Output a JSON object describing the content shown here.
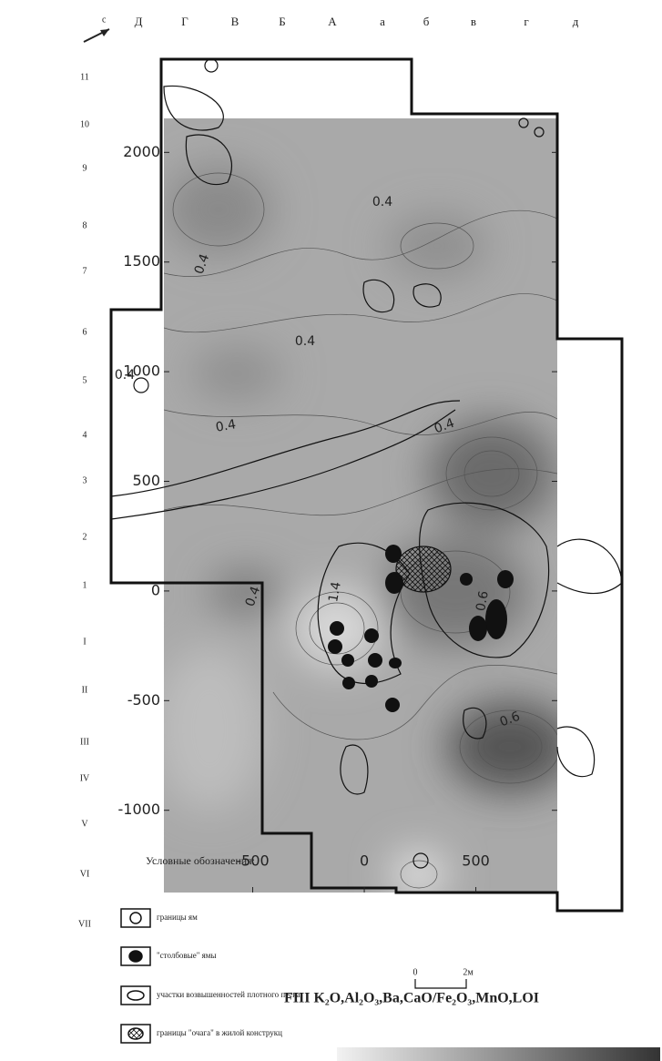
{
  "chart_data": {
    "type": "contour",
    "title": "FIII K₂O,Al₂O₃,Ba,CaO/Fe₂O₃,MnO,LOI",
    "north_label": "с",
    "columns": [
      "Д",
      "Г",
      "В",
      "Б",
      "А",
      "а",
      "б",
      "в",
      "г",
      "д"
    ],
    "rows": [
      "11",
      "10",
      "9",
      "8",
      "7",
      "6",
      "5",
      "4",
      "3",
      "2",
      "1",
      "I",
      "II",
      "III",
      "IV",
      "V",
      "VI",
      "VII"
    ],
    "xlim": [
      -898,
      865
    ],
    "ylim": [
      -1375,
      2155
    ],
    "xticks": [
      -500,
      0,
      500
    ],
    "yticks": [
      -1000,
      -500,
      0,
      500,
      1000,
      1500,
      2000
    ],
    "contour_labels": [
      0.4,
      0.4,
      0.4,
      0.4,
      0.4,
      0.4,
      0.4,
      1.4,
      0.6,
      0.6
    ],
    "legend": {
      "title": "Условные обозначения:",
      "items": [
        "границы ям",
        "\"столбовые\" ямы",
        "участки возвышенностей плотного песка",
        "границы \"очага\" в жилой конструкц"
      ]
    },
    "scale_bar": {
      "start": "0",
      "end": "2м"
    }
  }
}
